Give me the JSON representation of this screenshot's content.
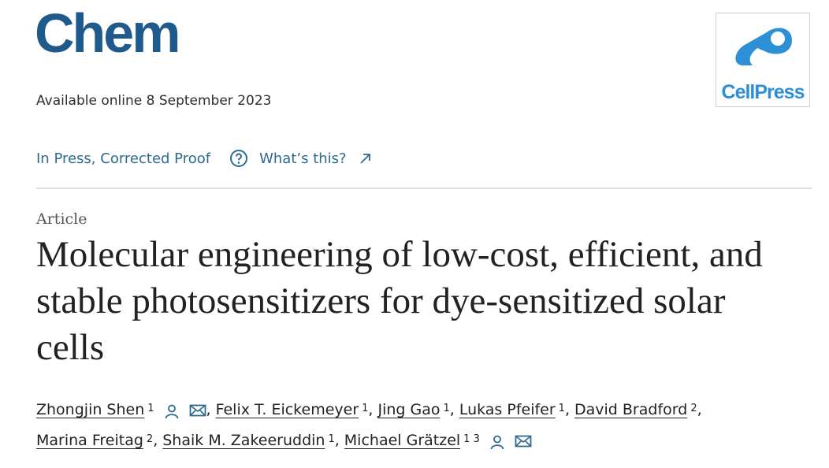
{
  "header": {
    "journal": "Chem",
    "publisher_logo": "CellPress",
    "availability": "Available online 8 September 2023",
    "status": "In Press, Corrected Proof",
    "help_link": "What’s this?"
  },
  "article": {
    "type": "Article",
    "title": "Molecular engineering of low-cost, efficient, and stable photosensitizers for dye-sensitized solar cells",
    "authors": {
      "separator": ",",
      "list": [
        {
          "name": "Zhongjin Shen",
          "affiliations": [
            "1"
          ],
          "corresponding": true
        },
        {
          "name": "Felix T. Eickemeyer",
          "affiliations": [
            "1"
          ],
          "corresponding": false
        },
        {
          "name": "Jing Gao",
          "affiliations": [
            "1"
          ],
          "corresponding": false
        },
        {
          "name": "Lukas Pfeifer",
          "affiliations": [
            "1"
          ],
          "corresponding": false
        },
        {
          "name": "David Bradford",
          "affiliations": [
            "2"
          ],
          "corresponding": false
        },
        {
          "name": "Marina Freitag",
          "affiliations": [
            "2"
          ],
          "corresponding": false
        },
        {
          "name": "Shaik M. Zakeeruddin",
          "affiliations": [
            "1"
          ],
          "corresponding": false
        },
        {
          "name": "Michael Grätzel",
          "affiliations": [
            "1",
            "3"
          ],
          "corresponding": true
        }
      ]
    }
  }
}
